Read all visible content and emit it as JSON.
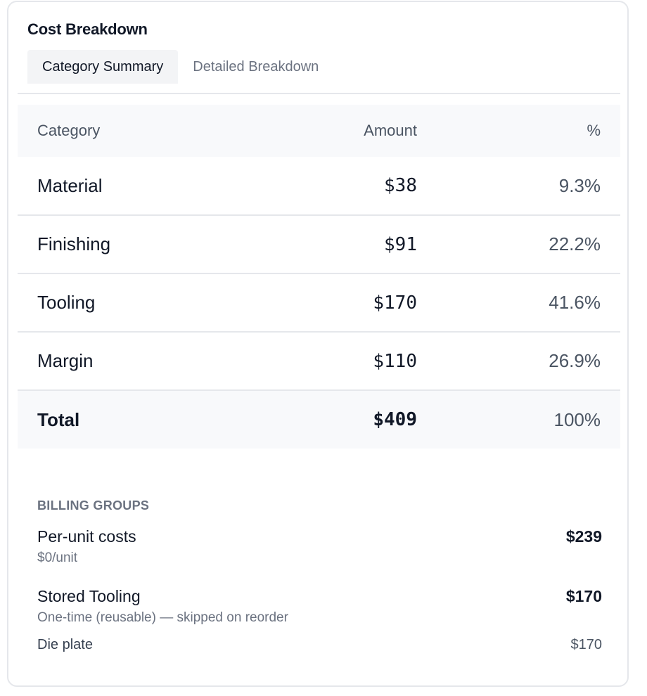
{
  "card": {
    "title": "Cost Breakdown",
    "tabs": [
      {
        "label": "Category Summary",
        "active": true
      },
      {
        "label": "Detailed Breakdown",
        "active": false
      }
    ]
  },
  "table": {
    "headers": {
      "category": "Category",
      "amount": "Amount",
      "percent": "%"
    },
    "rows": [
      {
        "category": "Material",
        "amount": "$38",
        "percent": "9.3%"
      },
      {
        "category": "Finishing",
        "amount": "$91",
        "percent": "22.2%"
      },
      {
        "category": "Tooling",
        "amount": "$170",
        "percent": "41.6%"
      },
      {
        "category": "Margin",
        "amount": "$110",
        "percent": "26.9%"
      }
    ],
    "total": {
      "category": "Total",
      "amount": "$409",
      "percent": "100%"
    }
  },
  "billing": {
    "heading": "BILLING GROUPS",
    "groups": [
      {
        "name": "Per-unit costs",
        "subtitle": "$0/unit",
        "amount": "$239"
      },
      {
        "name": "Stored Tooling",
        "subtitle": "One-time (reusable) — skipped on reorder",
        "amount": "$170"
      }
    ],
    "line_items": [
      {
        "name": "Die plate",
        "amount": "$170"
      }
    ]
  },
  "colors": {
    "border": "#e5e7eb",
    "header_bg": "#f8f9fb",
    "active_tab_bg": "#f3f4f6",
    "text_primary": "#111827",
    "text_muted": "#6b7280"
  }
}
